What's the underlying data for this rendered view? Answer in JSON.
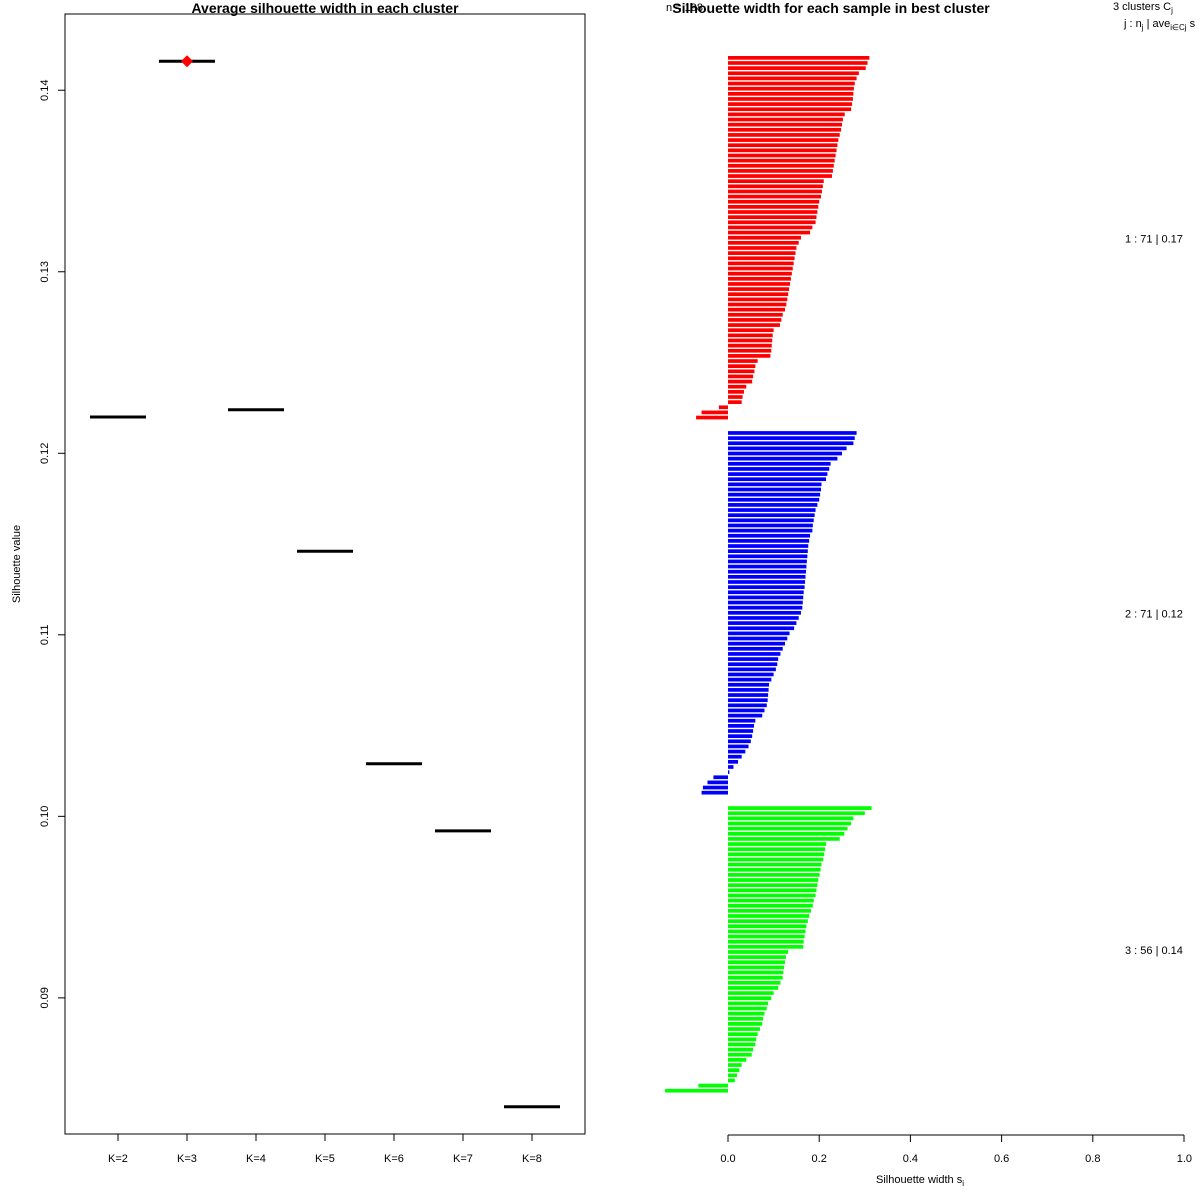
{
  "chart_data": [
    {
      "type": "scatter",
      "title": "Average silhouette width in each cluster",
      "xlabel": "",
      "ylabel": "Silhouette value",
      "categories": [
        "K=2",
        "K=3",
        "K=4",
        "K=5",
        "K=6",
        "K=7",
        "K=8"
      ],
      "values": [
        0.122,
        0.1416,
        0.1224,
        0.1146,
        0.1029,
        0.0992,
        0.084
      ],
      "ylim": [
        0.0825,
        0.1442
      ],
      "yticks": [
        "0.09",
        "0.10",
        "0.11",
        "0.12",
        "0.13",
        "0.14"
      ],
      "best_index": 1,
      "best_color": "#ff0000",
      "line_color": "#000000",
      "grid": false
    },
    {
      "type": "bar",
      "orientation": "horizontal",
      "title": "Silhouette width for each sample in best cluster",
      "overlay_text": "n = 198",
      "xlabel": "Silhouette width s",
      "xlabel_sub": "i",
      "xlim": [
        0,
        1
      ],
      "xticks": [
        "0.0",
        "0.2",
        "0.4",
        "0.6",
        "0.8",
        "1.0"
      ],
      "grid": false,
      "header": {
        "line1": "3  clusters  C",
        "line1_sub": "j",
        "line2a": "j :  n",
        "line2a_sub": "j",
        "line2b": " | ave",
        "line2b_sub": "i∈Cj",
        "line2c": "  s"
      },
      "clusters": [
        {
          "label": "1 :  71  |  0.17",
          "color": "#ff0000",
          "values": [
            0.31,
            0.306,
            0.302,
            0.287,
            0.282,
            0.278,
            0.276,
            0.275,
            0.274,
            0.272,
            0.27,
            0.256,
            0.252,
            0.25,
            0.248,
            0.245,
            0.242,
            0.24,
            0.238,
            0.236,
            0.234,
            0.232,
            0.23,
            0.228,
            0.21,
            0.208,
            0.206,
            0.204,
            0.2,
            0.198,
            0.196,
            0.194,
            0.192,
            0.185,
            0.18,
            0.16,
            0.155,
            0.15,
            0.148,
            0.146,
            0.144,
            0.142,
            0.14,
            0.138,
            0.136,
            0.134,
            0.132,
            0.13,
            0.128,
            0.125,
            0.12,
            0.117,
            0.114,
            0.1,
            0.098,
            0.097,
            0.096,
            0.095,
            0.093,
            0.065,
            0.06,
            0.058,
            0.055,
            0.053,
            0.04,
            0.035,
            0.032,
            0.03,
            -0.02,
            -0.058,
            -0.07
          ]
        },
        {
          "label": "2 :  71  |  0.12",
          "color": "#0000ff",
          "values": [
            0.282,
            0.278,
            0.275,
            0.26,
            0.25,
            0.24,
            0.225,
            0.222,
            0.218,
            0.215,
            0.205,
            0.204,
            0.202,
            0.2,
            0.196,
            0.192,
            0.19,
            0.188,
            0.186,
            0.185,
            0.18,
            0.178,
            0.176,
            0.175,
            0.174,
            0.173,
            0.172,
            0.171,
            0.17,
            0.169,
            0.168,
            0.166,
            0.165,
            0.164,
            0.163,
            0.16,
            0.155,
            0.15,
            0.145,
            0.135,
            0.13,
            0.125,
            0.12,
            0.115,
            0.11,
            0.108,
            0.105,
            0.1,
            0.095,
            0.09,
            0.089,
            0.088,
            0.087,
            0.085,
            0.08,
            0.075,
            0.06,
            0.057,
            0.055,
            0.053,
            0.05,
            0.045,
            0.038,
            0.03,
            0.022,
            0.012,
            0.003,
            -0.032,
            -0.045,
            -0.055,
            -0.058
          ]
        },
        {
          "label": "3 :  56  |  0.14",
          "color": "#00ff00",
          "values": [
            0.315,
            0.3,
            0.275,
            0.27,
            0.262,
            0.255,
            0.245,
            0.215,
            0.213,
            0.211,
            0.209,
            0.205,
            0.203,
            0.201,
            0.198,
            0.196,
            0.194,
            0.192,
            0.188,
            0.186,
            0.182,
            0.178,
            0.175,
            0.172,
            0.17,
            0.168,
            0.166,
            0.165,
            0.132,
            0.127,
            0.125,
            0.123,
            0.121,
            0.12,
            0.115,
            0.11,
            0.1,
            0.095,
            0.088,
            0.085,
            0.08,
            0.077,
            0.075,
            0.07,
            0.065,
            0.062,
            0.06,
            0.055,
            0.052,
            0.04,
            0.03,
            0.025,
            0.02,
            0.015,
            -0.065,
            -0.138
          ]
        }
      ]
    }
  ]
}
